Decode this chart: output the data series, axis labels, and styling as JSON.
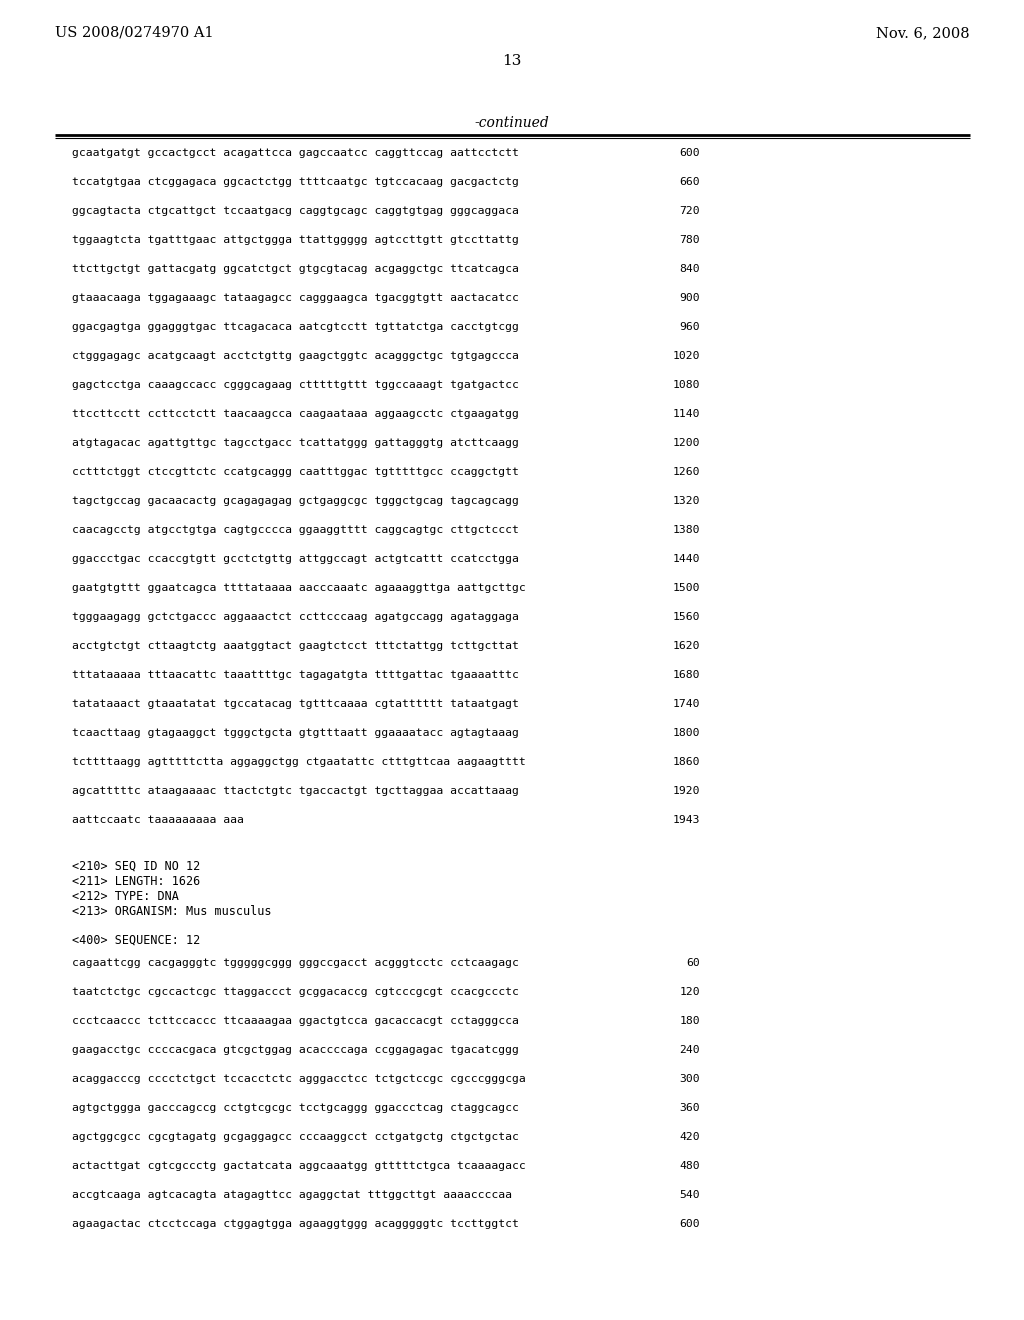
{
  "header_left": "US 2008/0274970 A1",
  "header_right": "Nov. 6, 2008",
  "page_number": "13",
  "continued_label": "-continued",
  "background_color": "#ffffff",
  "text_color": "#000000",
  "sequence_lines": [
    {
      "seq": "gcaatgatgt gccactgcct acagattcca gagccaatcc caggttccag aattcctctt",
      "num": "600"
    },
    {
      "seq": "tccatgtgaa ctcggagaca ggcactctgg ttttcaatgc tgtccacaag gacgactctg",
      "num": "660"
    },
    {
      "seq": "ggcagtacta ctgcattgct tccaatgacg caggtgcagc caggtgtgag gggcaggaca",
      "num": "720"
    },
    {
      "seq": "tggaagtcta tgatttgaac attgctggga ttattggggg agtccttgtt gtccttattg",
      "num": "780"
    },
    {
      "seq": "ttcttgctgt gattacgatg ggcatctgct gtgcgtacag acgaggctgc ttcatcagca",
      "num": "840"
    },
    {
      "seq": "gtaaacaaga tggagaaagc tataagagcc cagggaagca tgacggtgtt aactacatcc",
      "num": "900"
    },
    {
      "seq": "ggacgagtga ggagggtgac ttcagacaca aatcgtcctt tgttatctga cacctgtcgg",
      "num": "960"
    },
    {
      "seq": "ctgggagagc acatgcaagt acctctgttg gaagctggtc acagggctgc tgtgagccca",
      "num": "1020"
    },
    {
      "seq": "gagctcctga caaagccacc cgggcagaag ctttttgttt tggccaaagt tgatgactcc",
      "num": "1080"
    },
    {
      "seq": "ttccttcctt ccttcctctt taacaagcca caagaataaa aggaagcctc ctgaagatgg",
      "num": "1140"
    },
    {
      "seq": "atgtagacac agattgttgc tagcctgacc tcattatggg gattagggtg atcttcaagg",
      "num": "1200"
    },
    {
      "seq": "cctttctggt ctccgttctc ccatgcaggg caatttggac tgtttttgcc ccaggctgtt",
      "num": "1260"
    },
    {
      "seq": "tagctgccag gacaacactg gcagagagag gctgaggcgc tgggctgcag tagcagcagg",
      "num": "1320"
    },
    {
      "seq": "caacagcctg atgcctgtga cagtgcccca ggaaggtttt caggcagtgc cttgctccct",
      "num": "1380"
    },
    {
      "seq": "ggaccctgac ccaccgtgtt gcctctgttg attggccagt actgtcattt ccatcctgga",
      "num": "1440"
    },
    {
      "seq": "gaatgtgttt ggaatcagca ttttataaaa aacccaaatc agaaaggttga aattgcttgc",
      "num": "1500"
    },
    {
      "seq": "tgggaagagg gctctgaccc aggaaactct ccttcccaag agatgccagg agataggaga",
      "num": "1560"
    },
    {
      "seq": "acctgtctgt cttaagtctg aaatggtact gaagtctcct tttctattgg tcttgcttat",
      "num": "1620"
    },
    {
      "seq": "tttataaaaa tttaacattc taaattttgc tagagatgta ttttgattac tgaaaatttc",
      "num": "1680"
    },
    {
      "seq": "tatataaact gtaaatatat tgccatacag tgtttcaaaa cgtatttttt tataatgagt",
      "num": "1740"
    },
    {
      "seq": "tcaacttaag gtagaaggct tgggctgcta gtgtttaatt ggaaaatacc agtagtaaag",
      "num": "1800"
    },
    {
      "seq": "tcttttaagg agtttttctta aggaggctgg ctgaatattc ctttgttcaa aagaagtttt",
      "num": "1860"
    },
    {
      "seq": "agcatttttc ataagaaaac ttactctgtc tgaccactgt tgcttaggaa accattaaag",
      "num": "1920"
    },
    {
      "seq": "aattccaatc taaaaaaaaa aaa",
      "num": "1943"
    }
  ],
  "seq_id_block": [
    "<210> SEQ ID NO 12",
    "<211> LENGTH: 1626",
    "<212> TYPE: DNA",
    "<213> ORGANISM: Mus musculus"
  ],
  "seq400_label": "<400> SEQUENCE: 12",
  "seq400_lines": [
    {
      "seq": "cagaattcgg cacgagggtc tgggggcggg gggccgacct acgggtcctc cctcaagagc",
      "num": "60"
    },
    {
      "seq": "taatctctgc cgccactcgc ttaggaccct gcggacaccg cgtcccgcgt ccacgccctc",
      "num": "120"
    },
    {
      "seq": "ccctcaaccc tcttccaccc ttcaaaagaa ggactgtcca gacaccacgt cctagggcca",
      "num": "180"
    },
    {
      "seq": "gaagacctgc ccccacgaca gtcgctggag acaccccaga ccggagagac tgacatcggg",
      "num": "240"
    },
    {
      "seq": "acaggacccg cccctctgct tccacctctc agggacctcc tctgctccgc cgcccgggcga",
      "num": "300"
    },
    {
      "seq": "agtgctggga gacccagccg cctgtcgcgc tcctgcaggg ggaccctcag ctaggcagcc",
      "num": "360"
    },
    {
      "seq": "agctggcgcc cgcgtagatg gcgaggagcc cccaaggcct cctgatgctg ctgctgctac",
      "num": "420"
    },
    {
      "seq": "actacttgat cgtcgccctg gactatcata aggcaaatgg gtttttctgca tcaaaagacc",
      "num": "480"
    },
    {
      "seq": "accgtcaaga agtcacagta atagagttcc agaggctat tttggcttgt aaaaccccaa",
      "num": "540"
    },
    {
      "seq": "agaagactac ctcctccaga ctggagtgga agaaggtggg acagggggtc tccttggtct",
      "num": "600"
    }
  ]
}
